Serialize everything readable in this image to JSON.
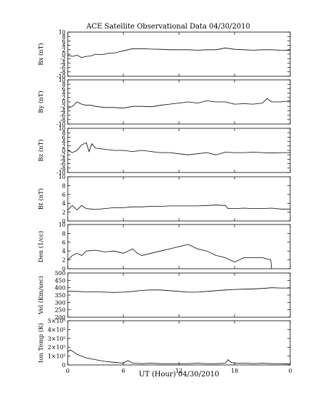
{
  "chart_data": {
    "type": "line",
    "title": "ACE Satellite Observational Data   04/30/2010",
    "xlabel": "UT (Hour)   04/30/2010",
    "x_ticks": [
      "0",
      "6",
      "12",
      "18",
      "0"
    ],
    "xlim": [
      0,
      24
    ],
    "grid": false,
    "panels": [
      {
        "ylabel": "Bx (nT)",
        "ylim": [
          -10,
          10
        ],
        "yticks": [
          "10",
          "8",
          "6",
          "4",
          "2",
          "0",
          "-2",
          "-4",
          "-6",
          "-8",
          "-10"
        ],
        "tick_values": [
          10,
          8,
          6,
          4,
          2,
          0,
          -2,
          -4,
          -6,
          -8,
          -10
        ],
        "x": [
          0,
          0.5,
          1,
          1.5,
          2,
          2.5,
          3,
          3.5,
          4,
          4.5,
          5,
          5.5,
          6,
          6.5,
          7,
          8,
          9,
          10,
          11,
          12,
          13,
          14,
          15,
          16,
          17,
          18,
          19,
          20,
          21,
          22,
          23,
          24
        ],
        "values": [
          -0.5,
          -1.0,
          -0.5,
          -1.5,
          -1.0,
          -0.8,
          0.0,
          -0.2,
          0.0,
          0.5,
          0.5,
          1.0,
          1.5,
          2.0,
          2.5,
          2.5,
          2.3,
          2.2,
          2.0,
          2.0,
          2.0,
          1.8,
          2.0,
          2.0,
          2.8,
          2.2,
          2.0,
          1.8,
          2.0,
          2.0,
          1.8,
          1.7
        ]
      },
      {
        "ylabel": "By (nT)",
        "ylim": [
          -10,
          10
        ],
        "yticks": [
          "10",
          "8",
          "6",
          "4",
          "2",
          "0",
          "-2",
          "-4",
          "-6",
          "-8",
          "-10"
        ],
        "tick_values": [
          10,
          8,
          6,
          4,
          2,
          0,
          -2,
          -4,
          -6,
          -8,
          -10
        ],
        "x": [
          0,
          0.5,
          1,
          1.5,
          2,
          2.5,
          3,
          4,
          5,
          6,
          7,
          8,
          9,
          10,
          11,
          12,
          13,
          14,
          15,
          16,
          17,
          18,
          19,
          20,
          21,
          21.5,
          22,
          23,
          24
        ],
        "values": [
          -3.0,
          -2.0,
          0.0,
          -1.0,
          -1.5,
          -1.5,
          -2.0,
          -2.5,
          -2.5,
          -2.8,
          -2.0,
          -2.0,
          -2.2,
          -1.5,
          -1.0,
          -0.5,
          0.0,
          -0.5,
          0.5,
          0.0,
          0.0,
          -1.0,
          -0.8,
          -1.0,
          -0.5,
          1.5,
          0.0,
          0.0,
          0.5
        ]
      },
      {
        "ylabel": "Bz (nT)",
        "ylim": [
          -10,
          10
        ],
        "yticks": [
          "10",
          "8",
          "6",
          "4",
          "2",
          "0",
          "-2",
          "-4",
          "-6",
          "-8",
          "-10"
        ],
        "tick_values": [
          10,
          8,
          6,
          4,
          2,
          0,
          -2,
          -4,
          -6,
          -8,
          -10
        ],
        "x": [
          0,
          0.5,
          1,
          1.5,
          2,
          2.3,
          2.6,
          3,
          4,
          5,
          6,
          7,
          8,
          9,
          10,
          11,
          12,
          13,
          14,
          15,
          16,
          17,
          18,
          19,
          20,
          21,
          22,
          23,
          24
        ],
        "values": [
          0.0,
          -1.0,
          0.0,
          2.5,
          3.5,
          -0.5,
          3.0,
          1.0,
          0.5,
          0.0,
          0.0,
          -0.5,
          0.0,
          -0.5,
          -1.0,
          -1.0,
          -1.5,
          -2.0,
          -1.5,
          -1.0,
          -2.0,
          -0.8,
          -1.0,
          -1.0,
          -0.8,
          -1.0,
          -1.2,
          -1.0,
          -1.0
        ]
      },
      {
        "ylabel": "Bt (nT)",
        "ylim": [
          0,
          10
        ],
        "yticks": [
          "10",
          "8",
          "6",
          "4",
          "2",
          "0"
        ],
        "tick_values": [
          10,
          8,
          6,
          4,
          2,
          0
        ],
        "x": [
          0,
          0.5,
          1,
          1.5,
          2,
          3,
          4,
          5,
          6,
          7,
          8,
          9,
          10,
          11,
          12,
          13,
          14,
          15,
          16,
          17,
          17.3,
          18,
          19,
          20,
          21,
          22,
          23,
          24
        ],
        "values": [
          2.5,
          3.5,
          2.5,
          3.5,
          2.8,
          2.6,
          2.8,
          3.0,
          3.0,
          3.2,
          3.2,
          3.3,
          3.3,
          3.4,
          3.4,
          3.4,
          3.4,
          3.5,
          3.6,
          3.5,
          2.8,
          2.8,
          2.9,
          2.8,
          2.8,
          2.9,
          2.7,
          2.7
        ]
      },
      {
        "ylabel": "Den (1/cc)",
        "ylim": [
          0,
          10
        ],
        "yticks": [
          "10",
          "8",
          "6",
          "4",
          "2",
          "0"
        ],
        "tick_values": [
          10,
          8,
          6,
          4,
          2,
          0
        ],
        "x": [
          0,
          0.5,
          1,
          1.5,
          2,
          3,
          4,
          5,
          6,
          7,
          7.5,
          8,
          9,
          10,
          11,
          12,
          13,
          14,
          15,
          16,
          17,
          18,
          19,
          20,
          21,
          21.9,
          22.0
        ],
        "values": [
          2.0,
          3.0,
          3.5,
          3.0,
          4.0,
          4.2,
          3.8,
          4.0,
          3.5,
          4.5,
          3.5,
          3.0,
          3.5,
          4.0,
          4.5,
          5.0,
          5.5,
          4.5,
          4.0,
          3.0,
          2.5,
          1.5,
          2.5,
          2.5,
          2.5,
          2.0,
          0.0
        ]
      },
      {
        "ylabel": "Vel (Km/sec)",
        "ylim": [
          200,
          500
        ],
        "yticks": [
          "500",
          "450",
          "400",
          "350",
          "300",
          "250",
          "200"
        ],
        "tick_values": [
          500,
          450,
          400,
          350,
          300,
          250,
          200
        ],
        "x": [
          0,
          1,
          2,
          3,
          4,
          5,
          6,
          7,
          8,
          9,
          10,
          11,
          12,
          13,
          14,
          15,
          16,
          17,
          18,
          19,
          20,
          21,
          22,
          23,
          24
        ],
        "values": [
          375,
          375,
          372,
          372,
          370,
          368,
          370,
          375,
          382,
          385,
          385,
          380,
          375,
          370,
          370,
          375,
          380,
          385,
          388,
          390,
          392,
          395,
          400,
          398,
          398
        ]
      },
      {
        "ylabel": "Ion Temp (K)",
        "ylim": [
          0,
          500000
        ],
        "yticks": [
          "5×10⁵",
          "4×10⁵",
          "3×10⁵",
          "2×10⁵",
          "1×10⁵",
          "0"
        ],
        "tick_values": [
          500000,
          400000,
          300000,
          200000,
          100000,
          0
        ],
        "x": [
          0,
          0.3,
          0.6,
          1,
          2,
          3,
          4,
          5,
          6,
          6.5,
          7,
          8,
          9,
          10,
          11,
          12,
          13,
          14,
          15,
          16,
          17,
          17.3,
          17.6,
          18,
          19,
          20,
          21,
          22,
          23,
          24
        ],
        "values": [
          150000,
          170000,
          150000,
          120000,
          80000,
          60000,
          40000,
          30000,
          20000,
          50000,
          20000,
          15000,
          20000,
          15000,
          15000,
          15000,
          15000,
          20000,
          15000,
          15000,
          20000,
          60000,
          30000,
          20000,
          20000,
          15000,
          20000,
          15000,
          15000,
          10000
        ]
      }
    ]
  }
}
